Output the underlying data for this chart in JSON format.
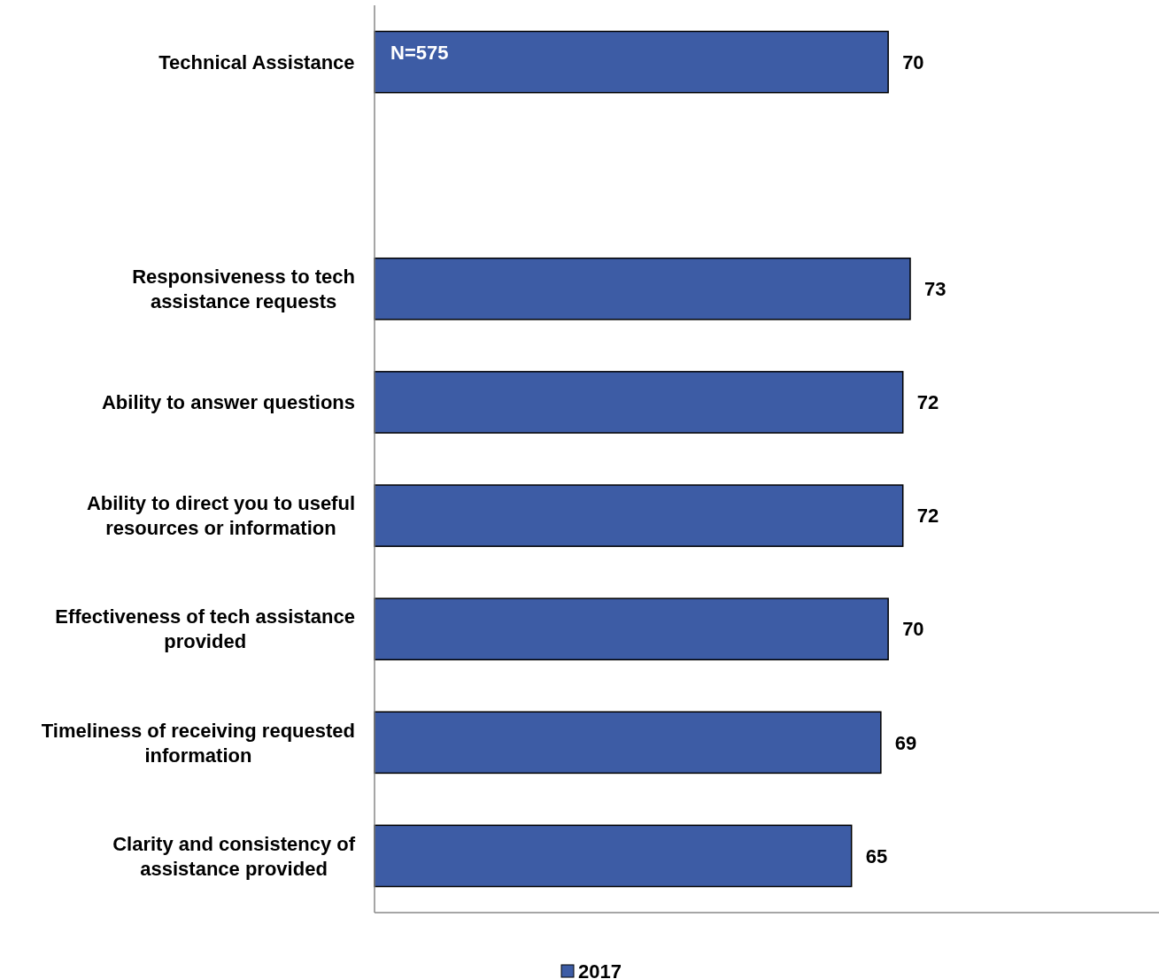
{
  "chart_data": {
    "type": "bar",
    "orientation": "horizontal",
    "categories": [
      "Technical Assistance",
      null,
      "Responsiveness to tech assistance requests",
      "Ability to answer questions",
      "Ability to direct you to useful resources or information",
      "Effectiveness of tech assistance provided",
      "Timeliness of receiving requested information",
      "Clarity and consistency of assistance provided"
    ],
    "series": [
      {
        "name": "2017",
        "color": "#3d5ca5",
        "values": [
          70,
          null,
          73,
          72,
          72,
          70,
          69,
          65
        ]
      }
    ],
    "data_labels": true,
    "annotations": [
      "N=575"
    ],
    "legend": "bottom"
  }
}
